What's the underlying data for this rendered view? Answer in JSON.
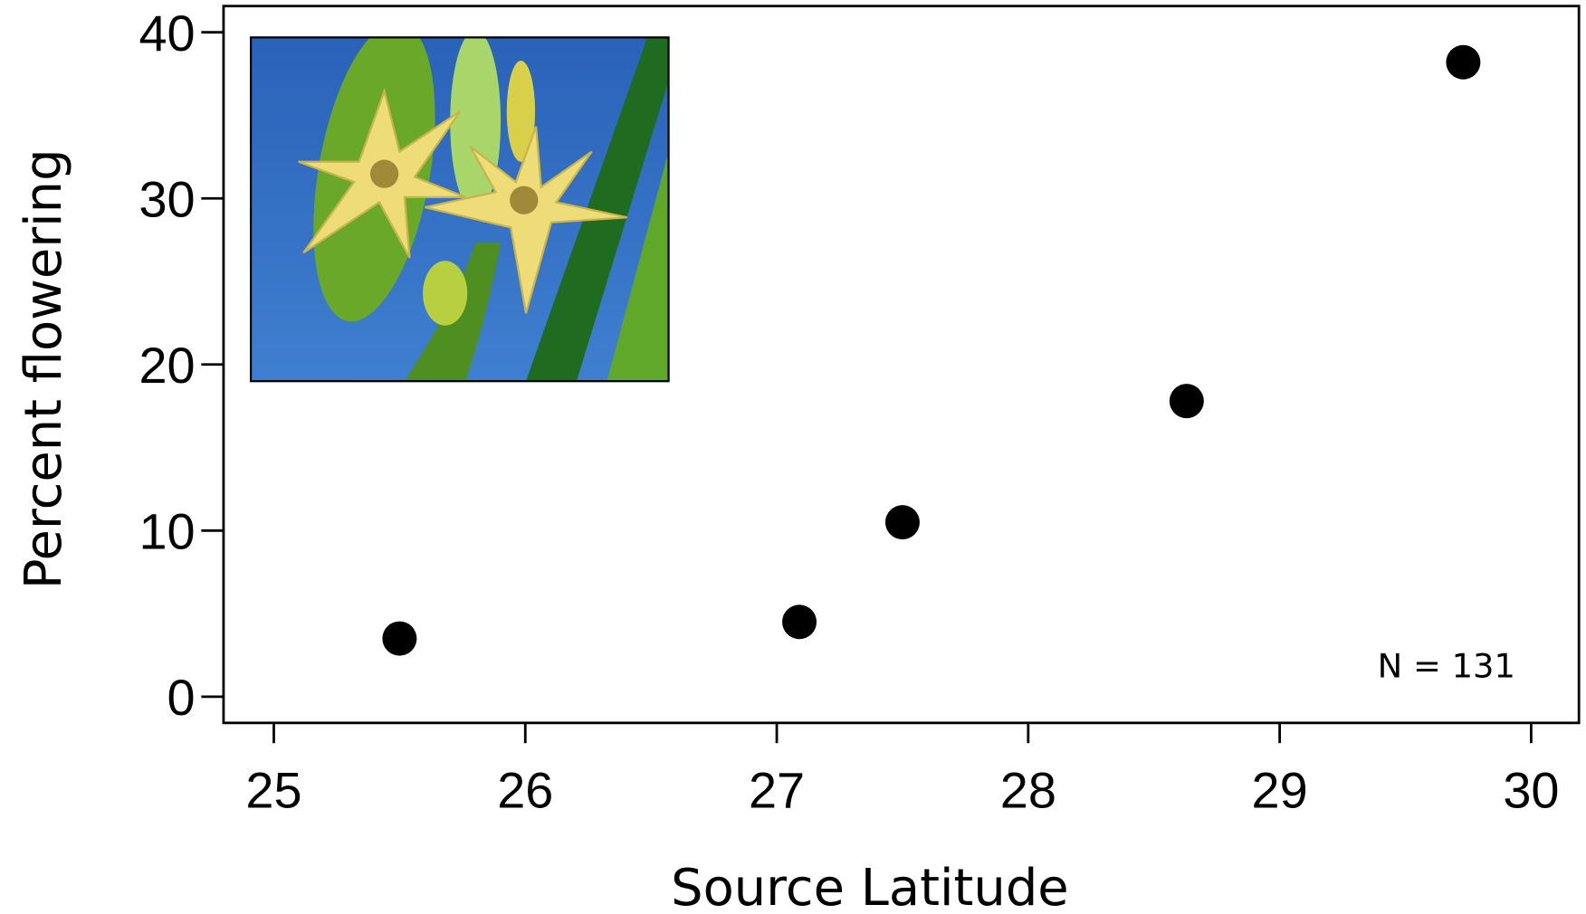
{
  "chart_data": {
    "type": "scatter",
    "xlabel": "Source Latitude",
    "ylabel": "Percent flowering",
    "annotation": "N = 131",
    "x": [
      25.5,
      27.09,
      27.5,
      28.63,
      29.73
    ],
    "values": [
      3.5,
      4.5,
      10.5,
      17.8,
      38.2
    ],
    "color": "#000000",
    "xlim": [
      24.8,
      30.19
    ],
    "xticks": [
      25,
      26,
      27,
      28,
      29,
      30
    ],
    "ylim": [
      -1.58,
      41.58
    ],
    "yticks": [
      0,
      10,
      20,
      30,
      40
    ]
  }
}
